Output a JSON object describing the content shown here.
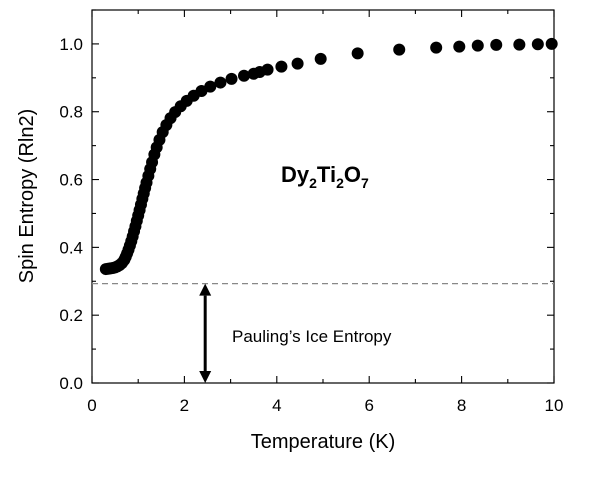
{
  "chart_data": {
    "type": "scatter",
    "xlabel": "Temperature (K)",
    "ylabel": "Spin Entropy (Rln2)",
    "xlim": [
      0,
      10
    ],
    "ylim": [
      0.0,
      1.1
    ],
    "x_ticks": [
      "0",
      "2",
      "4",
      "6",
      "8",
      "10"
    ],
    "y_ticks": [
      "0.0",
      "0.2",
      "0.4",
      "0.6",
      "0.8",
      "1.0"
    ],
    "grid": false,
    "colors": {
      "markers": "#000000",
      "reference_line": "#888888",
      "arrow": "#000000"
    },
    "annotations": {
      "compound": {
        "main": "Dy",
        "sub1": "2",
        "mid": "Ti",
        "sub2": "2",
        "end": "O",
        "sub3": "7"
      },
      "pauling": "Pauling’s Ice Entropy"
    },
    "reference_line": {
      "y": 0.293,
      "style": "dashed"
    },
    "arrow": {
      "x": 2.45,
      "y_from": 0.0,
      "y_to": 0.293,
      "double_headed": true
    },
    "series": [
      {
        "marker": "filled-circle",
        "x": [
          0.3,
          0.35,
          0.4,
          0.45,
          0.5,
          0.55,
          0.6,
          0.65,
          0.7,
          0.73,
          0.76,
          0.79,
          0.82,
          0.85,
          0.88,
          0.91,
          0.94,
          0.97,
          1.0,
          1.03,
          1.06,
          1.09,
          1.12,
          1.15,
          1.18,
          1.22,
          1.26,
          1.3,
          1.35,
          1.4,
          1.46,
          1.53,
          1.61,
          1.7,
          1.8,
          1.92,
          2.05,
          2.2,
          2.37,
          2.56,
          2.78,
          3.02,
          3.29,
          3.5,
          3.63,
          3.8,
          4.1,
          4.45,
          4.95,
          5.75,
          6.65,
          7.45,
          7.95,
          8.35,
          8.75,
          9.25,
          9.65,
          9.95
        ],
        "y": [
          0.336,
          0.337,
          0.338,
          0.339,
          0.341,
          0.344,
          0.348,
          0.354,
          0.363,
          0.372,
          0.382,
          0.393,
          0.405,
          0.418,
          0.432,
          0.447,
          0.462,
          0.478,
          0.494,
          0.51,
          0.526,
          0.543,
          0.559,
          0.575,
          0.591,
          0.611,
          0.631,
          0.651,
          0.674,
          0.695,
          0.717,
          0.74,
          0.761,
          0.781,
          0.799,
          0.816,
          0.832,
          0.847,
          0.861,
          0.874,
          0.886,
          0.897,
          0.906,
          0.912,
          0.917,
          0.924,
          0.933,
          0.942,
          0.956,
          0.972,
          0.983,
          0.989,
          0.992,
          0.995,
          0.997,
          0.998,
          0.999,
          1.0
        ]
      }
    ]
  }
}
